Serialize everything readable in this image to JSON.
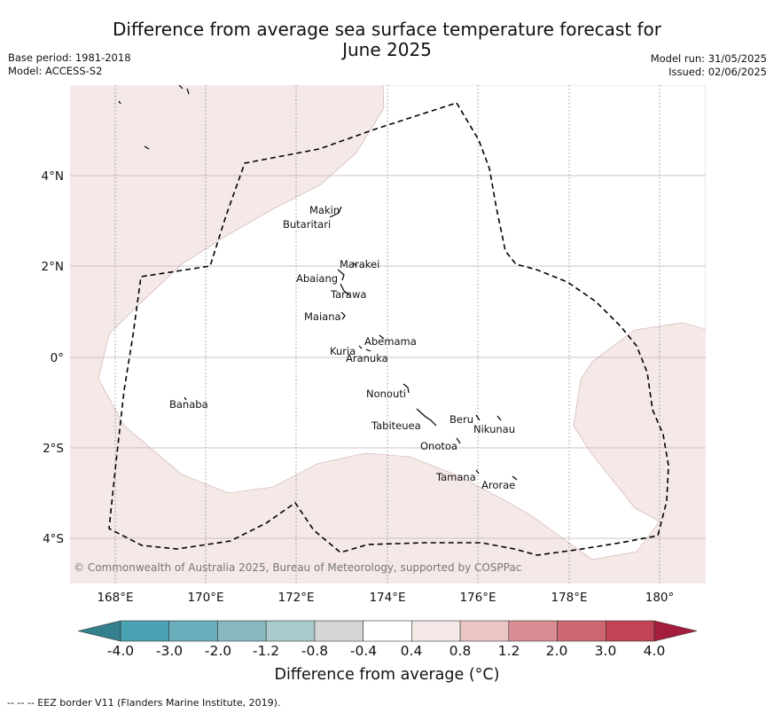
{
  "title_line1": "Difference from average sea surface temperature forecast for",
  "title_line2": "June 2025",
  "base_period": "Base period: 1981-2018",
  "model": "Model: ACCESS-S2",
  "model_run": "Model run: 31/05/2025",
  "issued": "Issued: 02/06/2025",
  "copyright": "© Commonwealth of Australia 2025, Bureau of Meteorology, supported by COSPPac",
  "lon_ticks": [
    "168°E",
    "170°E",
    "172°E",
    "174°E",
    "176°E",
    "178°E",
    "180°"
  ],
  "lat_ticks": [
    "4°N",
    "2°N",
    "0°",
    "2°S",
    "4°S"
  ],
  "islands": [
    {
      "name": "Makin"
    },
    {
      "name": "Butaritari"
    },
    {
      "name": "Marakei"
    },
    {
      "name": "Abaiang"
    },
    {
      "name": "Tarawa"
    },
    {
      "name": "Maiana"
    },
    {
      "name": "Abemama"
    },
    {
      "name": "Kuria"
    },
    {
      "name": "Aranuka"
    },
    {
      "name": "Nonouti"
    },
    {
      "name": "Banaba"
    },
    {
      "name": "Beru"
    },
    {
      "name": "Nikunau"
    },
    {
      "name": "Tabiteuea"
    },
    {
      "name": "Onotoa"
    },
    {
      "name": "Tamana"
    },
    {
      "name": "Arorae"
    }
  ],
  "colorbar": {
    "ticks": [
      "-4.0",
      "-3.0",
      "-2.0",
      "-1.2",
      "-0.8",
      "-0.4",
      "0.4",
      "0.8",
      "1.2",
      "2.0",
      "3.0",
      "4.0"
    ],
    "colors": [
      "#34808e",
      "#4aa3b2",
      "#6aaebb",
      "#89b7c1",
      "#a9c9cc",
      "#d4d6d6",
      "#ffffff",
      "#f5e9e8",
      "#e9c6c4",
      "#d98e94",
      "#cd6873",
      "#c04455",
      "#a51d3d"
    ],
    "label": "Difference from average (°C)"
  },
  "map_fill_colors": {
    "warm_anomaly": "#f5e9e8",
    "neutral": "#ffffff"
  },
  "footnote": "--  --  -- EEZ border V11 (Flanders Marine Institute, 2019)."
}
